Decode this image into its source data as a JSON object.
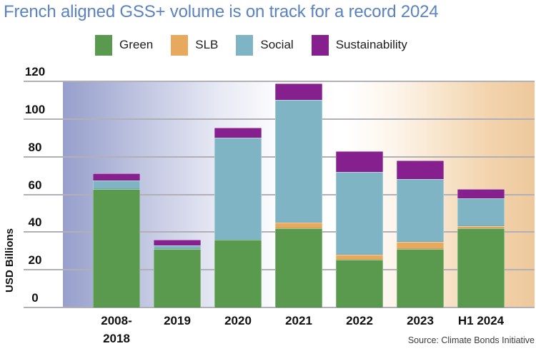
{
  "chart_data": {
    "type": "bar",
    "stacked": true,
    "title": "French aligned GSS+ volume is on track for a record 2024",
    "ylabel": "USD Billions",
    "source": "Source: Climate Bonds Initiative",
    "categories": [
      "2008-\n2018",
      "2019",
      "2020",
      "2021",
      "2022",
      "2023",
      "H1 2024"
    ],
    "series": [
      {
        "name": "Green",
        "color": "#5a9a4e",
        "values": [
          63,
          31,
          36,
          42,
          25.5,
          31,
          42
        ]
      },
      {
        "name": "SLB",
        "color": "#e7a95e",
        "values": [
          0,
          0,
          0,
          3,
          2.5,
          4,
          1
        ]
      },
      {
        "name": "Social",
        "color": "#7fb4c4",
        "values": [
          4.5,
          2,
          54,
          65,
          44,
          33,
          15
        ]
      },
      {
        "name": "Sustainability",
        "color": "#87208f",
        "values": [
          3.5,
          3,
          5.5,
          9,
          11,
          10,
          5
        ]
      }
    ],
    "totals": [
      71,
      36,
      95.5,
      119,
      83,
      78,
      63
    ],
    "ylim": [
      0,
      120
    ],
    "yticks": [
      0,
      20,
      40,
      60,
      80,
      100,
      120
    ],
    "grid": true,
    "legend_position": "top",
    "colors": {
      "title_text": "#5b82c1",
      "axis_text": "#111111",
      "gridline": "#b1b0b6",
      "bg_gradient_left": "#97a0cc",
      "bg_gradient_right": "#eec89c"
    }
  }
}
